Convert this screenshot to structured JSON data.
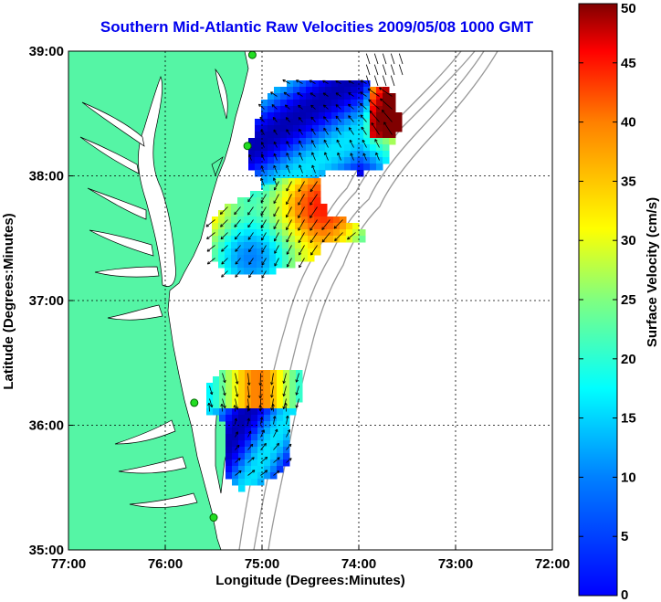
{
  "title": "Southern Mid-Atlantic Raw Velocities 2009/05/08 1000 GMT",
  "x_axis": {
    "label": "Longitude (Degrees:Minutes)",
    "ticks": [
      "77:00",
      "76:00",
      "75:00",
      "74:00",
      "73:00",
      "72:00"
    ]
  },
  "y_axis": {
    "label": "Latitude (Degrees:Minutes)",
    "ticks": [
      "39:00",
      "38:00",
      "37:00",
      "36:00",
      "35:00"
    ]
  },
  "colorbar": {
    "label": "Surface Velocity (cm/s)",
    "ticks": [
      "50",
      "45",
      "40",
      "35",
      "30",
      "25",
      "20",
      "15",
      "10",
      "5",
      "0"
    ],
    "min": 0,
    "max": 50,
    "colormap": "jet"
  },
  "colors": {
    "title": "#0000ee",
    "land": "#55f5a5",
    "station": "#22dd22",
    "bathymetry": "#999999"
  },
  "chart_data": {
    "type": "vector-field-map",
    "xlim": [
      -77,
      -72
    ],
    "ylim": [
      35,
      39
    ],
    "grid": true,
    "stations": [
      {
        "lon": -75.1,
        "lat": 38.97
      },
      {
        "lon": -75.15,
        "lat": 38.24
      },
      {
        "lon": -75.7,
        "lat": 36.18
      },
      {
        "lon": -75.5,
        "lat": 35.26
      }
    ]
  }
}
